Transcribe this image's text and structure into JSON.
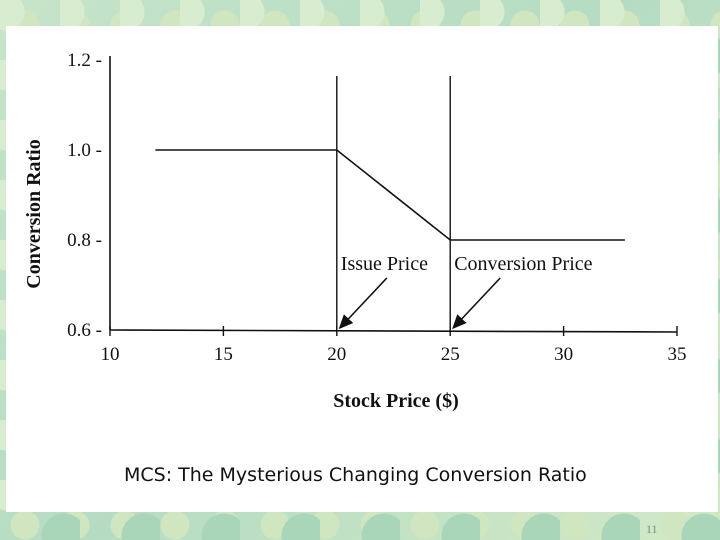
{
  "chart_data": {
    "type": "line",
    "title": "",
    "xlabel": "Stock Price ($)",
    "ylabel": "Conversion Ratio",
    "xlim": [
      10,
      35
    ],
    "ylim": [
      0.6,
      1.2
    ],
    "x_ticks": [
      "10",
      "15",
      "20",
      "25",
      "30",
      "35"
    ],
    "y_ticks": [
      "0.6 -",
      "0.8 -",
      "1.0 -",
      "1.2 -"
    ],
    "series": [
      {
        "x": [
          12,
          20,
          25,
          32.7
        ],
        "y": [
          1.0,
          1.0,
          0.8,
          0.8
        ]
      }
    ],
    "vertical_lines": [
      20,
      25
    ],
    "annotations": [
      {
        "text": "Issue Price",
        "x": 20
      },
      {
        "text": "Conversion Price",
        "x": 25
      }
    ],
    "grid": false
  },
  "caption": "MCS: The Mysterious Changing Conversion Ratio",
  "page_number": "11"
}
